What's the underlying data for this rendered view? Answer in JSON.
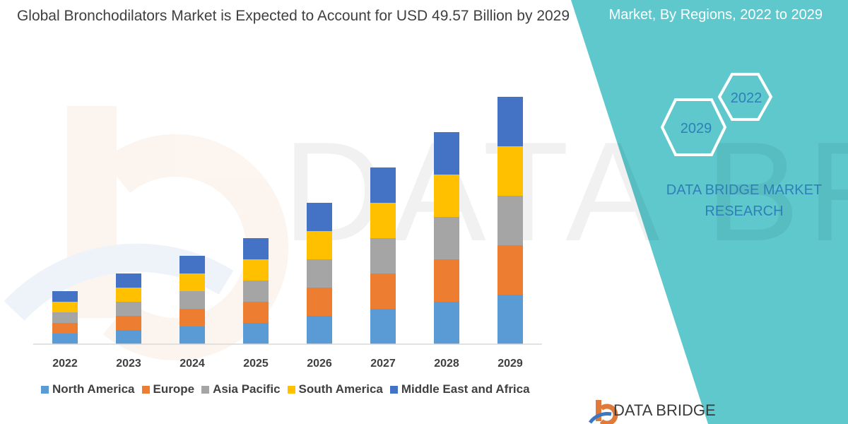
{
  "chart_data": {
    "type": "bar",
    "stacked": true,
    "title": "Global Bronchodilators Market is Expected to Account for USD 49.57 Billion by 2029",
    "categories": [
      "2022",
      "2023",
      "2024",
      "2025",
      "2026",
      "2027",
      "2028",
      "2029"
    ],
    "series": [
      {
        "name": "North America",
        "color": "#5b9bd5",
        "values": [
          3,
          4,
          5,
          6,
          8,
          10,
          12,
          14
        ]
      },
      {
        "name": "Europe",
        "color": "#ed7d31",
        "values": [
          3,
          4,
          5,
          6,
          8,
          10,
          12,
          14
        ]
      },
      {
        "name": "Asia Pacific",
        "color": "#a5a5a5",
        "values": [
          3,
          4,
          5,
          6,
          8,
          10,
          12,
          14
        ]
      },
      {
        "name": "South America",
        "color": "#ffc000",
        "values": [
          3,
          4,
          5,
          6,
          8,
          10,
          12,
          14
        ]
      },
      {
        "name": "Middle East and Africa",
        "color": "#4472c4",
        "values": [
          3,
          4,
          5,
          6,
          8,
          10,
          12,
          14
        ]
      }
    ],
    "ylim": [
      0,
      72
    ],
    "legend_position": "bottom",
    "grid": false
  },
  "side_panel": {
    "heading": "Market, By Regions, 2022 to 2029",
    "hexagons": [
      "2022",
      "2029"
    ],
    "brand": "DATA BRIDGE MARKET RESEARCH",
    "color": "#5ec8cc"
  },
  "footer_logo": "DATA BRIDGE",
  "watermark": "DATA BRIDGE MARKET RESEARCH"
}
